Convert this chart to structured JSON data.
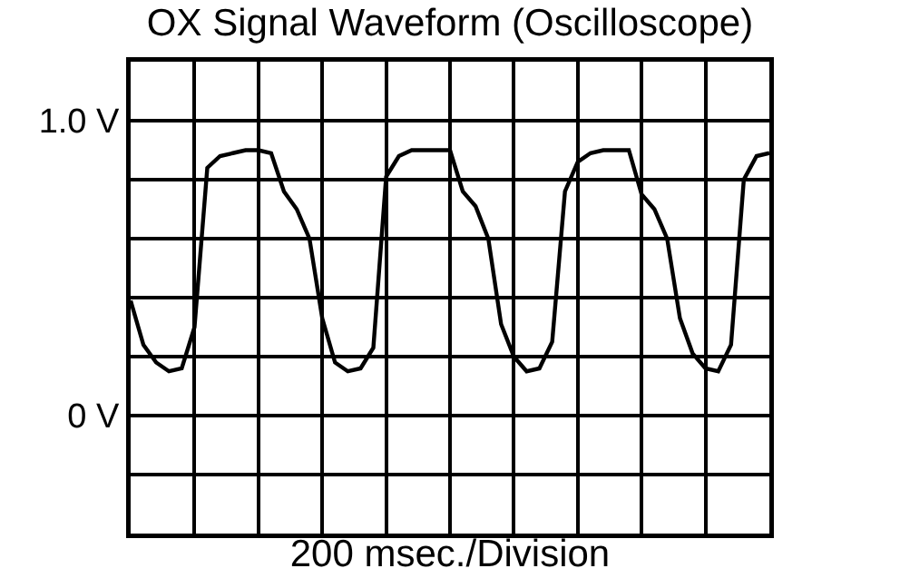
{
  "chart_data": {
    "type": "line",
    "title": "OX Signal Waveform (Oscilloscope)",
    "xlabel": "200 msec./Division",
    "categories": [
      null,
      null,
      null,
      null,
      null,
      null,
      null,
      null,
      null,
      null,
      null,
      null,
      null,
      null,
      null,
      null,
      null,
      null,
      null,
      null,
      null,
      null,
      null,
      null,
      null,
      null,
      null,
      null,
      null,
      null,
      null,
      null,
      null,
      null,
      null,
      null,
      null,
      null,
      null,
      null,
      null,
      null,
      null,
      null,
      null,
      null,
      null,
      null,
      null,
      null,
      null
    ],
    "series": [
      {
        "color": "#000000",
        "values": [
          0.39,
          0.24,
          0.18,
          0.15,
          0.16,
          0.3,
          0.84,
          0.88,
          0.89,
          0.9,
          0.9,
          0.89,
          0.76,
          0.7,
          0.6,
          0.33,
          0.18,
          0.15,
          0.16,
          0.23,
          0.81,
          0.88,
          0.9,
          0.9,
          0.9,
          0.9,
          0.76,
          0.71,
          0.6,
          0.31,
          0.2,
          0.15,
          0.16,
          0.25,
          0.76,
          0.86,
          0.89,
          0.9,
          0.9,
          0.9,
          0.75,
          0.7,
          0.6,
          0.33,
          0.21,
          0.16,
          0.15,
          0.24,
          0.8,
          0.88,
          0.89
        ]
      }
    ],
    "ylim": [
      -0.4,
      1.2
    ],
    "yticks": [
      {
        "value": -0.4,
        "label": null
      },
      {
        "value": -0.2,
        "label": null
      },
      {
        "value": 0,
        "label": "0 V"
      },
      {
        "value": 0.2,
        "label": null
      },
      {
        "value": 0.4,
        "label": null
      },
      {
        "value": 0.6,
        "label": null
      },
      {
        "value": 0.8,
        "label": null
      },
      {
        "value": 1.0,
        "label": "1.0 V"
      },
      {
        "value": 1.2,
        "label": null
      }
    ],
    "grid": true,
    "marker": "none",
    "line_style": "solid",
    "tick_labels": "y"
  }
}
